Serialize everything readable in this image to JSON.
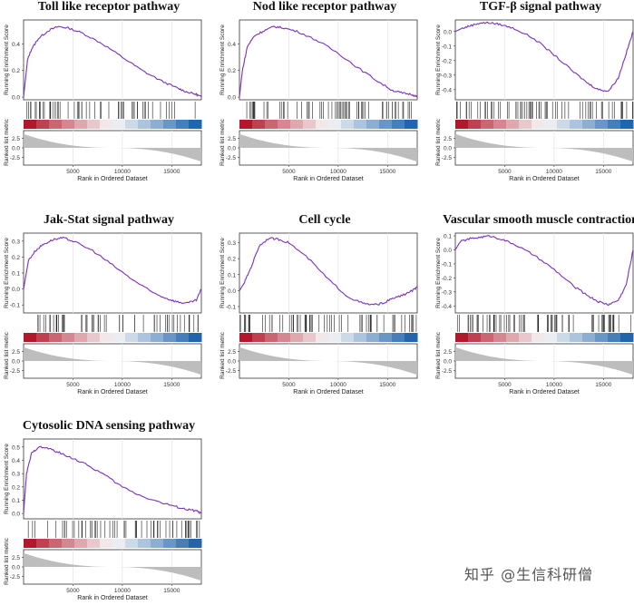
{
  "axis_labels": {
    "es": "Running Enrichment Score",
    "rank": "Ranked list metric",
    "x": "Rank in Ordered Dataset",
    "metric_ticks": [
      "2.5",
      "0.0",
      "-2.5"
    ],
    "x_ticks": [
      "5000",
      "10000",
      "15000"
    ]
  },
  "colors": {
    "curve": "#7b2fbe",
    "tick": "#222222",
    "red": "#b2182b",
    "blue": "#2166ac",
    "area": "#bdbdbd"
  },
  "watermark": "知乎 @生信科研僧",
  "chart_data": [
    {
      "type": "line",
      "title": "Toll like receptor pathway",
      "xlabel": "Rank in Ordered Dataset",
      "ylabel": "Running Enrichment Score",
      "xlim": [
        0,
        18000
      ],
      "ylim": [
        -0.02,
        0.58
      ],
      "yticks": [
        0.0,
        0.2,
        0.4
      ],
      "x": [
        0,
        400,
        800,
        1500,
        2500,
        3500,
        4500,
        6000,
        8000,
        10000,
        12000,
        14000,
        15500,
        16500,
        17500,
        18000
      ],
      "values": [
        0.0,
        0.28,
        0.36,
        0.44,
        0.5,
        0.53,
        0.52,
        0.48,
        0.4,
        0.3,
        0.2,
        0.12,
        0.07,
        0.04,
        0.02,
        0.0
      ]
    },
    {
      "type": "line",
      "title": "Nod like receptor pathway",
      "xlabel": "Rank in Ordered Dataset",
      "ylabel": "Running Enrichment Score",
      "xlim": [
        0,
        18000
      ],
      "ylim": [
        -0.02,
        0.58
      ],
      "yticks": [
        0.0,
        0.2,
        0.4
      ],
      "x": [
        0,
        300,
        800,
        1500,
        2500,
        3500,
        4500,
        6000,
        8000,
        10000,
        12000,
        14000,
        15500,
        16500,
        17500,
        18000
      ],
      "values": [
        0.0,
        0.2,
        0.38,
        0.46,
        0.5,
        0.53,
        0.52,
        0.49,
        0.42,
        0.33,
        0.22,
        0.12,
        0.05,
        0.03,
        0.02,
        0.0
      ]
    },
    {
      "type": "line",
      "title": "TGF-β signal pathway",
      "xlabel": "Rank in Ordered Dataset",
      "ylabel": "Running Enrichment Score",
      "xlim": [
        0,
        18000
      ],
      "ylim": [
        -0.47,
        0.08
      ],
      "yticks": [
        0.0,
        -0.1,
        -0.2,
        -0.3,
        -0.4
      ],
      "x": [
        0,
        600,
        1500,
        2500,
        3500,
        4500,
        6000,
        8000,
        10000,
        12000,
        13500,
        14500,
        15500,
        16500,
        17300,
        18000
      ],
      "values": [
        0.0,
        0.02,
        0.04,
        0.06,
        0.06,
        0.05,
        0.02,
        -0.05,
        -0.16,
        -0.28,
        -0.36,
        -0.4,
        -0.41,
        -0.32,
        -0.15,
        0.0
      ]
    },
    {
      "type": "line",
      "title": "Jak-Stat signal pathway",
      "xlabel": "Rank in Ordered Dataset",
      "ylabel": "Running Enrichment Score",
      "xlim": [
        0,
        18000
      ],
      "ylim": [
        -0.15,
        0.35
      ],
      "yticks": [
        0.3,
        0.2,
        0.1,
        0.0,
        -0.1
      ],
      "x": [
        0,
        500,
        1200,
        2000,
        3000,
        4000,
        5000,
        7000,
        9000,
        11000,
        13000,
        14500,
        15500,
        16500,
        17500,
        18000
      ],
      "values": [
        0.0,
        0.18,
        0.24,
        0.28,
        0.31,
        0.32,
        0.3,
        0.24,
        0.15,
        0.06,
        -0.02,
        -0.06,
        -0.08,
        -0.09,
        -0.07,
        0.0
      ]
    },
    {
      "type": "line",
      "title": "Cell cycle",
      "xlabel": "Rank in Ordered Dataset",
      "ylabel": "Running Enrichment Score",
      "xlim": [
        0,
        18000
      ],
      "ylim": [
        -0.14,
        0.36
      ],
      "yticks": [
        0.3,
        0.2,
        0.1,
        0.0,
        -0.1
      ],
      "x": [
        0,
        500,
        1200,
        2000,
        3000,
        4000,
        5000,
        7000,
        9000,
        11000,
        12500,
        13500,
        14500,
        15500,
        16500,
        17500,
        18000
      ],
      "values": [
        0.0,
        0.05,
        0.15,
        0.28,
        0.33,
        0.32,
        0.3,
        0.2,
        0.07,
        -0.04,
        -0.08,
        -0.09,
        -0.08,
        -0.05,
        -0.03,
        0.0,
        0.02
      ]
    },
    {
      "type": "line",
      "title": "Vascular smooth muscle contraction",
      "xlabel": "Rank in Ordered Dataset",
      "ylabel": "Running Enrichment Score",
      "xlim": [
        0,
        18000
      ],
      "ylim": [
        -0.45,
        0.12
      ],
      "yticks": [
        0.1,
        0.0,
        -0.1,
        -0.2,
        -0.3,
        -0.4
      ],
      "x": [
        0,
        500,
        1500,
        2500,
        3500,
        4500,
        6000,
        8000,
        10000,
        12000,
        13500,
        14500,
        15500,
        16500,
        17300,
        18000
      ],
      "values": [
        0.0,
        0.06,
        0.08,
        0.09,
        0.1,
        0.08,
        0.04,
        -0.04,
        -0.14,
        -0.26,
        -0.33,
        -0.37,
        -0.39,
        -0.36,
        -0.25,
        0.0
      ]
    },
    {
      "type": "line",
      "title": "Cytosolic DNA sensing pathway",
      "xlabel": "Rank in Ordered Dataset",
      "ylabel": "Running Enrichment Score",
      "xlim": [
        0,
        18000
      ],
      "ylim": [
        -0.04,
        0.56
      ],
      "yticks": [
        0.0,
        0.1,
        0.2,
        0.3,
        0.4,
        0.5
      ],
      "x": [
        0,
        300,
        800,
        1500,
        2500,
        3500,
        4500,
        6000,
        8000,
        10000,
        12000,
        14000,
        15500,
        16500,
        17500,
        18000
      ],
      "values": [
        0.0,
        0.3,
        0.45,
        0.5,
        0.49,
        0.46,
        0.43,
        0.38,
        0.3,
        0.2,
        0.13,
        0.08,
        0.05,
        0.03,
        0.02,
        0.0
      ]
    }
  ]
}
